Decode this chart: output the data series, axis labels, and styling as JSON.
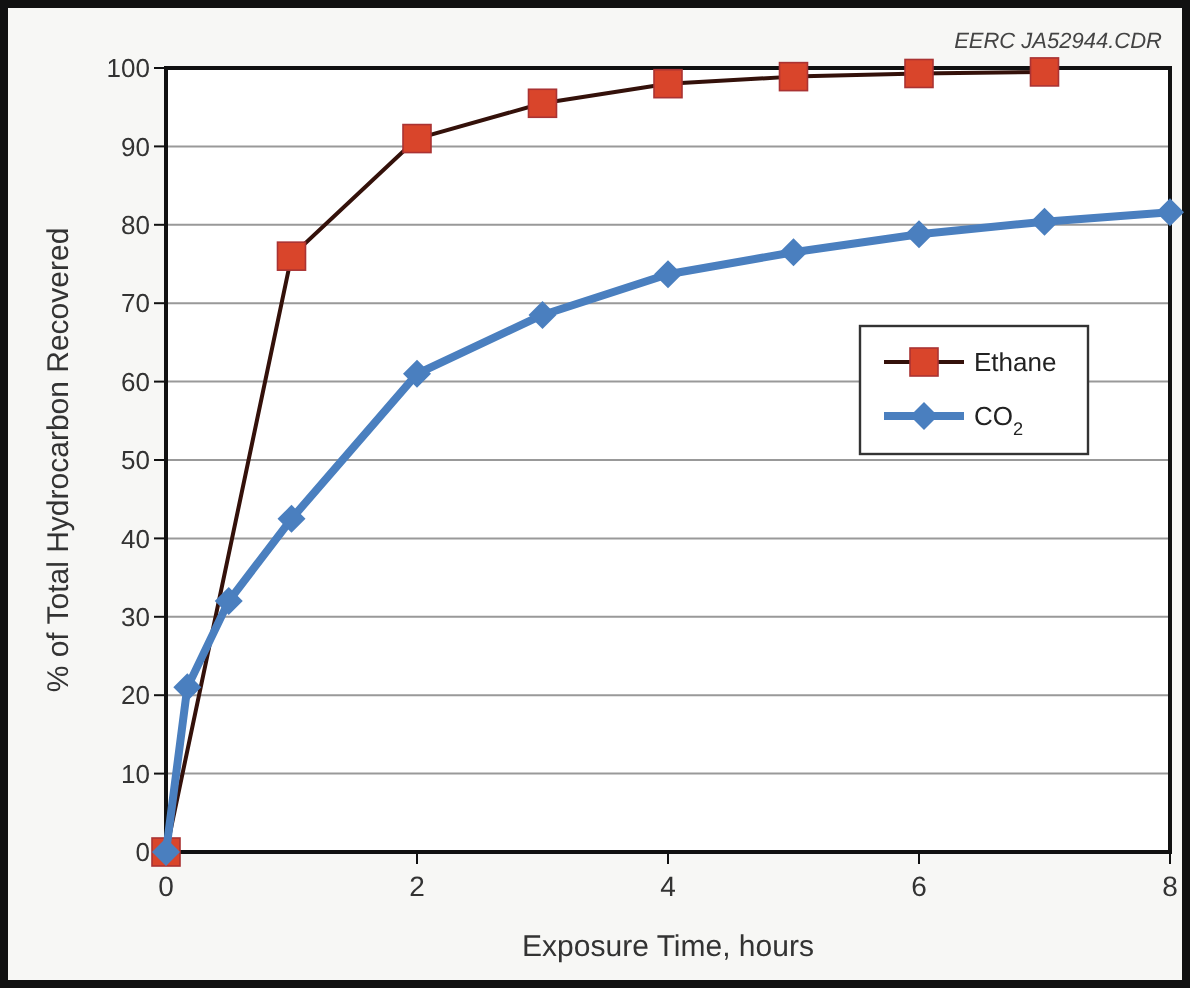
{
  "chart_data": {
    "type": "line",
    "xlabel": "Exposure Time, hours",
    "ylabel": "% of Total Hydrocarbon Recovered",
    "annotations": [
      "EERC JA52944.CDR"
    ],
    "xlim": [
      0,
      8
    ],
    "xticks": [
      0,
      2,
      4,
      6,
      8
    ],
    "ylim": [
      0,
      100
    ],
    "yticks": [
      0,
      10,
      20,
      30,
      40,
      50,
      60,
      70,
      80,
      90,
      100
    ],
    "grid": "y",
    "legend": "right",
    "series": [
      {
        "name": "Ethane",
        "color": "#d9452b",
        "marker": "square",
        "x": [
          0,
          1,
          2,
          3,
          4,
          5,
          6,
          7
        ],
        "values": [
          0,
          76,
          91,
          95.5,
          98,
          98.9,
          99.3,
          99.5
        ]
      },
      {
        "name": "CO$_{2}$",
        "color": "#4a7fbf",
        "marker": "diamond",
        "x": [
          0,
          0.17,
          0.5,
          1,
          2,
          3,
          4,
          5,
          6,
          7,
          8
        ],
        "values": [
          0,
          21,
          32,
          42.5,
          61,
          68.5,
          73.7,
          76.5,
          78.8,
          80.4,
          81.6
        ]
      }
    ]
  }
}
